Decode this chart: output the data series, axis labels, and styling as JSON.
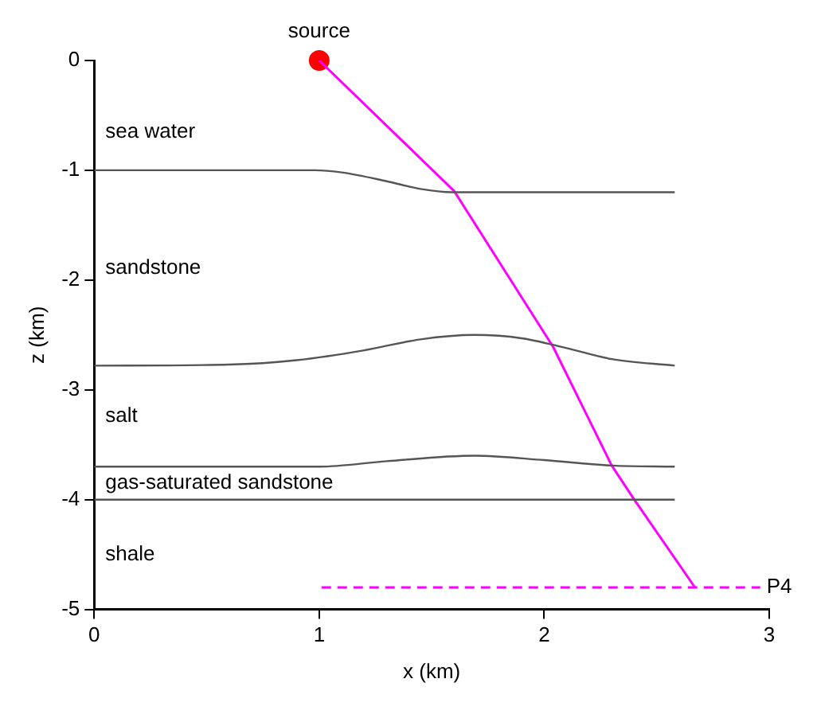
{
  "chart_data": {
    "type": "line",
    "xlabel": "x (km)",
    "ylabel": "z (km)",
    "xlim": [
      0,
      3
    ],
    "xticks": [
      0,
      1,
      2,
      3
    ],
    "ylim": [
      -5,
      0
    ],
    "yticks": [
      -5,
      -4,
      -3,
      -2,
      -1,
      0
    ],
    "grid": false,
    "legend": false,
    "marker": "none",
    "line_style": "solid",
    "series": [
      {
        "type": "line",
        "color": "#555555",
        "x": [
          0,
          0.98,
          1.1,
          1.3,
          1.45,
          1.59,
          2.58
        ],
        "values": [
          -1,
          -1,
          -1.02,
          -1.1,
          -1.17,
          -1.2,
          -1.2
        ]
      },
      {
        "type": "line",
        "color": "#555555",
        "x": [
          0,
          0.6,
          0.9,
          1.2,
          1.45,
          1.69,
          1.9,
          2.1,
          2.3,
          2.58
        ],
        "values": [
          -2.78,
          -2.77,
          -2.73,
          -2.64,
          -2.54,
          -2.5,
          -2.53,
          -2.62,
          -2.72,
          -2.78
        ]
      },
      {
        "type": "line",
        "color": "#555555",
        "x": [
          0,
          1.0,
          1.3,
          1.69,
          2.0,
          2.3,
          2.58
        ],
        "values": [
          -3.7,
          -3.7,
          -3.65,
          -3.6,
          -3.64,
          -3.69,
          -3.7
        ]
      },
      {
        "type": "line",
        "color": "#555555",
        "x": [
          0,
          2.58
        ],
        "values": [
          -4,
          -4
        ]
      },
      {
        "type": "line",
        "color": "#ff00ff",
        "x": [
          1,
          1.6,
          2.04,
          2.3,
          2.4,
          2.67
        ],
        "values": [
          0,
          -1.19,
          -2.61,
          -3.69,
          -4.0,
          -4.8
        ]
      },
      {
        "type": "line",
        "color": "#ff00ff",
        "line_style": "dashed",
        "x": [
          1.01,
          2.96
        ],
        "values": [
          -4.8,
          -4.8
        ]
      },
      {
        "type": "scatter",
        "color": "#ff0000",
        "marker": "circle",
        "x": [
          1
        ],
        "values": [
          0
        ]
      }
    ],
    "annotations": [
      {
        "text": "source",
        "x": 1,
        "y": 0
      },
      {
        "text": "P4",
        "x": 2.96,
        "y": -4.8
      },
      "sea water",
      "sandstone",
      "salt",
      "gas-saturated sandstone",
      "shale"
    ]
  }
}
